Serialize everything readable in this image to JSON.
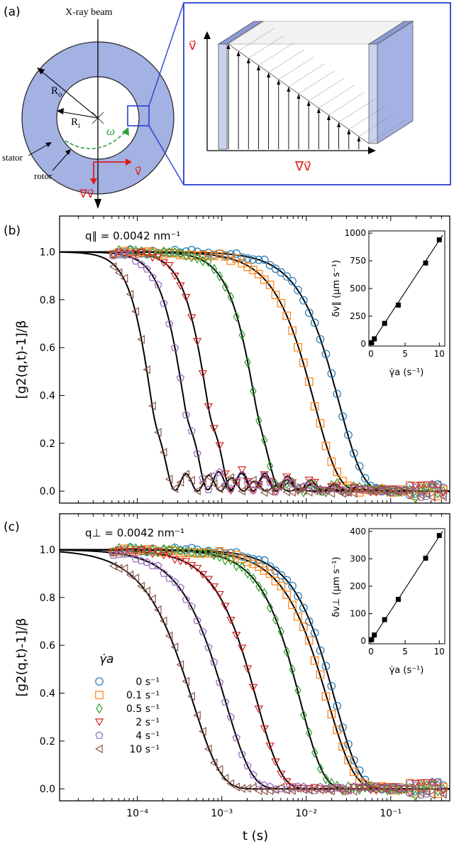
{
  "panel_a": {
    "label": "(a)",
    "beam_label": "X-ray beam",
    "r_outer": "R",
    "r_outer_sub": "o",
    "r_inner": "R",
    "r_inner_sub": "i",
    "omega": "ω",
    "stator": "stator",
    "rotor": "rotor",
    "v_symbol": "v⃗",
    "grad_v_symbol": "∇v⃗",
    "colors": {
      "ring": "#a3b1e3",
      "accent": "#2b3fd1",
      "arrow_red": "#e01b1b",
      "omega_green": "#2e9e3e"
    }
  },
  "chart_data": [
    {
      "type": "scatter",
      "panel": "(b)",
      "annotation": "q∥ = 0.0042 nm⁻¹",
      "ylabel": "[g2(q,t)-1]/β",
      "xlabel": "",
      "xscale": "log",
      "xlim": [
        1.2e-05,
        0.5
      ],
      "ylim": [
        -0.05,
        1.15
      ],
      "yticks": [
        "0.0",
        "0.2",
        "0.4",
        "0.6",
        "0.8",
        "1.0"
      ],
      "xticks": [],
      "series": [
        {
          "name": "0 s⁻¹",
          "marker": "circle",
          "color": "#1f77b4",
          "tau": 0.0245,
          "n": 1.55,
          "osc": 0
        },
        {
          "name": "0.1 s⁻¹",
          "marker": "square",
          "color": "#ff7f0e",
          "tau": 0.0125,
          "n": 1.55,
          "osc": 0
        },
        {
          "name": "0.5 s⁻¹",
          "marker": "diamond",
          "color": "#2ca02c",
          "tau": 0.0025,
          "n": 2.3,
          "osc": 0.04
        },
        {
          "name": "2 s⁻¹",
          "marker": "tri_down",
          "color": "#d62728",
          "tau": 0.00068,
          "n": 2.6,
          "osc": 0.09
        },
        {
          "name": "4 s⁻¹",
          "marker": "pentagon",
          "color": "#9467bd",
          "tau": 0.00036,
          "n": 2.6,
          "osc": 0.09
        },
        {
          "name": "10 s⁻¹",
          "marker": "tri_left",
          "color": "#8c564b",
          "tau": 0.000148,
          "n": 2.8,
          "osc": 0.08
        }
      ],
      "inset": {
        "ylabel": "δv∥ (μm s⁻¹)",
        "xlabel": "γ̇a (s⁻¹)",
        "xlim": [
          -0.3,
          10.8
        ],
        "ylim": [
          -20,
          1020
        ],
        "yticks": [
          "0",
          "250",
          "500",
          "750",
          "1000"
        ],
        "xticks": [
          "0",
          "5",
          "10"
        ],
        "x": [
          0.1,
          0.5,
          2,
          4,
          8,
          10
        ],
        "y": [
          10,
          45,
          185,
          350,
          730,
          940
        ],
        "fit_slope": 93.5
      }
    },
    {
      "type": "scatter",
      "panel": "(c)",
      "annotation": "q⊥ = 0.0042 nm⁻¹",
      "ylabel": "[g2(q,t)-1]/β",
      "xlabel": "t (s)",
      "xscale": "log",
      "xlim": [
        1.2e-05,
        0.5
      ],
      "ylim": [
        -0.05,
        1.15
      ],
      "yticks": [
        "0.0",
        "0.2",
        "0.4",
        "0.6",
        "0.8",
        "1.0"
      ],
      "xticks": [
        "10⁻⁴",
        "10⁻³",
        "10⁻²",
        "10⁻¹"
      ],
      "legend_title": "γ̇a",
      "series": [
        {
          "name": "0 s⁻¹",
          "marker": "circle",
          "color": "#1f77b4",
          "tau": 0.022,
          "n": 1.5
        },
        {
          "name": "0.1 s⁻¹",
          "marker": "square",
          "color": "#ff7f0e",
          "tau": 0.018,
          "n": 1.4
        },
        {
          "name": "0.5 s⁻¹",
          "marker": "diamond",
          "color": "#2ca02c",
          "tau": 0.0085,
          "n": 1.6
        },
        {
          "name": "2 s⁻¹",
          "marker": "tri_down",
          "color": "#d62728",
          "tau": 0.0026,
          "n": 1.5
        },
        {
          "name": "4 s⁻¹",
          "marker": "pentagon",
          "color": "#9467bd",
          "tau": 0.0011,
          "n": 1.4
        },
        {
          "name": "10 s⁻¹",
          "marker": "tri_left",
          "color": "#8c564b",
          "tau": 0.00045,
          "n": 1.3
        }
      ],
      "inset": {
        "ylabel": "δv⊥ (μm s⁻¹)",
        "xlabel": "γ̇a (s⁻¹)",
        "xlim": [
          -0.3,
          10.8
        ],
        "ylim": [
          -10,
          410
        ],
        "yticks": [
          "0",
          "100",
          "200",
          "300",
          "400"
        ],
        "xticks": [
          "0",
          "5",
          "10"
        ],
        "x": [
          0.1,
          0.5,
          2,
          4,
          8,
          10
        ],
        "y": [
          5,
          22,
          78,
          152,
          302,
          385
        ],
        "fit_slope": 38.2
      }
    }
  ]
}
